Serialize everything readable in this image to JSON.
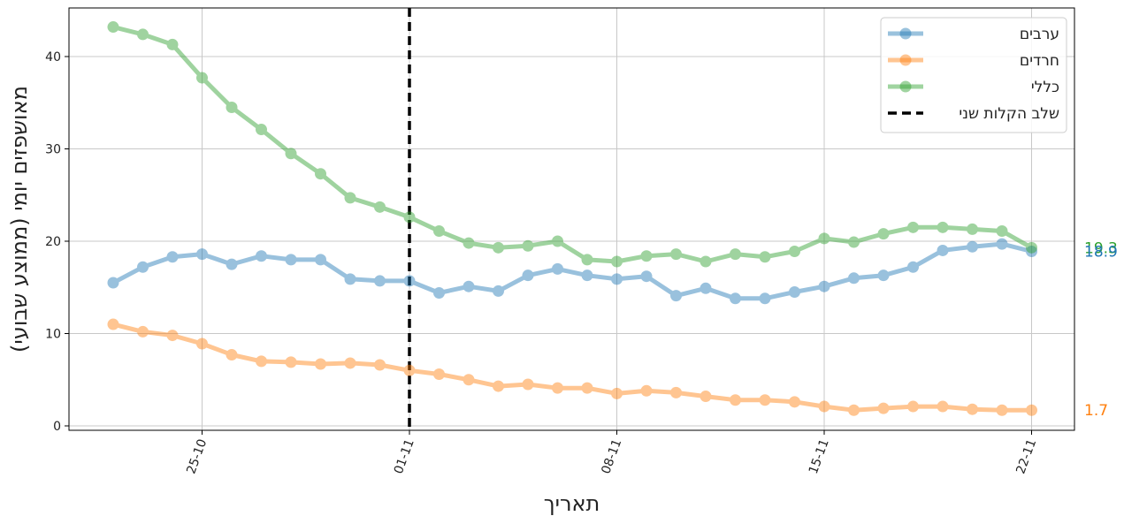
{
  "chart_data": {
    "type": "line",
    "xlabel": "תאריך",
    "ylabel": "מאושפזים יומי (ממוצע שבועי)",
    "ylim": [
      0,
      45
    ],
    "yticks": [
      0,
      10,
      20,
      30,
      40
    ],
    "xticks": [
      {
        "index": 3,
        "label": "25-10"
      },
      {
        "index": 10,
        "label": "01-11"
      },
      {
        "index": 17,
        "label": "08-11"
      },
      {
        "index": 24,
        "label": "15-11"
      },
      {
        "index": 31,
        "label": "22-11"
      }
    ],
    "grid": true,
    "legend_position": "top-right",
    "x": [
      "22-10",
      "23-10",
      "24-10",
      "25-10",
      "26-10",
      "27-10",
      "28-10",
      "29-10",
      "30-10",
      "31-10",
      "01-11",
      "02-11",
      "03-11",
      "04-11",
      "05-11",
      "06-11",
      "07-11",
      "08-11",
      "09-11",
      "10-11",
      "11-11",
      "12-11",
      "13-11",
      "14-11",
      "15-11",
      "16-11",
      "17-11",
      "18-11",
      "19-11",
      "20-11",
      "21-11",
      "22-11"
    ],
    "series": [
      {
        "name": "ערבים",
        "color": "#1f77b4",
        "values": [
          15.5,
          17.2,
          18.3,
          18.6,
          17.5,
          18.4,
          18.0,
          18.0,
          15.9,
          15.7,
          15.7,
          14.4,
          15.1,
          14.6,
          16.3,
          17.0,
          16.3,
          15.9,
          16.2,
          14.1,
          14.9,
          13.8,
          13.8,
          14.5,
          15.1,
          16.0,
          16.3,
          17.2,
          19.0,
          19.4,
          19.7,
          18.9
        ],
        "end_label": "18.9"
      },
      {
        "name": "חרדים",
        "color": "#ff7f0e",
        "values": [
          11.0,
          10.2,
          9.8,
          8.9,
          7.7,
          7.0,
          6.9,
          6.7,
          6.8,
          6.6,
          6.0,
          5.6,
          5.0,
          4.3,
          4.5,
          4.1,
          4.1,
          3.5,
          3.8,
          3.6,
          3.2,
          2.8,
          2.8,
          2.6,
          2.1,
          1.7,
          1.9,
          2.1,
          2.1,
          1.8,
          1.7,
          1.7
        ],
        "end_label": "1.7"
      },
      {
        "name": "כללי",
        "color": "#2ca02c",
        "values": [
          43.2,
          42.4,
          41.3,
          37.7,
          34.5,
          32.1,
          29.5,
          27.3,
          24.7,
          23.7,
          22.6,
          21.1,
          19.8,
          19.3,
          19.5,
          20.0,
          18.0,
          17.8,
          18.4,
          18.6,
          17.8,
          18.6,
          18.3,
          18.9,
          20.3,
          19.9,
          20.8,
          21.5,
          21.5,
          21.3,
          21.1,
          19.3
        ],
        "end_label": "19.3"
      }
    ],
    "vline": {
      "index": 10,
      "name": "שלב הקלות שני",
      "color": "#000000"
    }
  }
}
